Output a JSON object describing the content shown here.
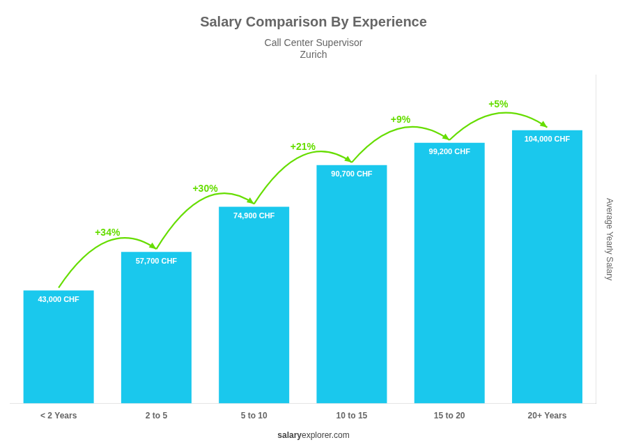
{
  "chart_data": {
    "type": "bar",
    "title": "Salary Comparison By Experience",
    "subtitle": "Call Center Supervisor",
    "city": "Zurich",
    "categories": [
      "< 2 Years",
      "2 to 5",
      "5 to 10",
      "10 to 15",
      "15 to 20",
      "20+ Years"
    ],
    "values": [
      43000,
      57700,
      74900,
      90700,
      99200,
      104000
    ],
    "value_labels": [
      "43,000 CHF",
      "57,700 CHF",
      "74,900 CHF",
      "90,700 CHF",
      "99,200 CHF",
      "104,000 CHF"
    ],
    "data_labels": true,
    "color": "#1ac8ed",
    "ylabel": "Average Yearly Salary",
    "ylim": [
      0,
      125000
    ],
    "grid": false,
    "tick_labels": "x",
    "annotations": [
      {
        "text": "+34%",
        "from": "< 2 Years",
        "to": "2 to 5",
        "color": "#66dd00"
      },
      {
        "text": "+30%",
        "from": "2 to 5",
        "to": "5 to 10",
        "color": "#66dd00"
      },
      {
        "text": "+21%",
        "from": "5 to 10",
        "to": "10 to 15",
        "color": "#66dd00"
      },
      {
        "text": "+9%",
        "from": "10 to 15",
        "to": "15 to 20",
        "color": "#66dd00"
      },
      {
        "text": "+5%",
        "from": "15 to 20",
        "to": "20+ Years",
        "color": "#66dd00"
      }
    ],
    "footer": [
      "salary",
      "explorer.com"
    ]
  }
}
